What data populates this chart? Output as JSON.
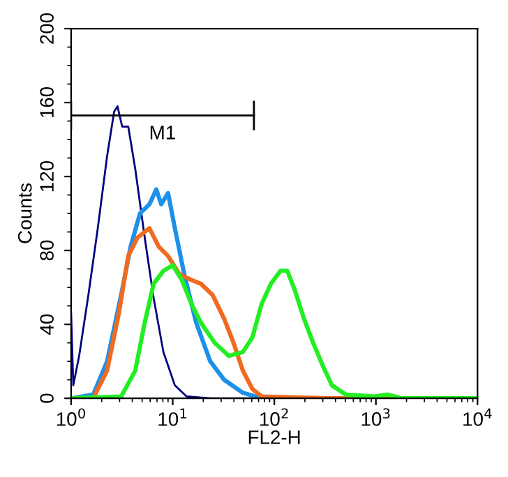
{
  "chart_data": {
    "type": "line",
    "xlabel": "FL2-H",
    "ylabel": "Counts",
    "log": "x",
    "grid": false,
    "legend": false,
    "xlim": [
      1,
      10000
    ],
    "ylim": [
      0,
      200
    ],
    "xticks": [
      {
        "value": 1,
        "label": "10$^{0}$"
      },
      {
        "value": 10,
        "label": "10$^{1}$"
      },
      {
        "value": 100,
        "label": "10$^{2}$"
      },
      {
        "value": 1000,
        "label": "10$^{3}$"
      },
      {
        "value": 10000,
        "label": "10$^{4}$"
      }
    ],
    "yticks": [
      0,
      40,
      80,
      120,
      160,
      200
    ],
    "annotations": [
      "M1"
    ],
    "series": [
      {
        "color": "#000080",
        "x": [
          1,
          1.05,
          1.2,
          1.48,
          1.83,
          2.26,
          2.65,
          2.86,
          3.18,
          3.65,
          4.28,
          5.3,
          6.5,
          8.1,
          10.5,
          13.7,
          23.4,
          10000
        ],
        "values": [
          46,
          7,
          23,
          56,
          92,
          131,
          155,
          158,
          147,
          147,
          124,
          87,
          54,
          25,
          7,
          1,
          0,
          0
        ]
      },
      {
        "color": "#1e90e8",
        "x": [
          1,
          1.65,
          2.26,
          3.11,
          3.85,
          4.76,
          5.9,
          6.9,
          7.7,
          9.0,
          10.5,
          13.0,
          17.0,
          23.4,
          32.1,
          49,
          75,
          10000
        ],
        "values": [
          0,
          2,
          20,
          56,
          82,
          100,
          105,
          113,
          105,
          111,
          92,
          67,
          41,
          20,
          10,
          3,
          0,
          0
        ]
      },
      {
        "color": "#f06a20",
        "x": [
          1,
          1.65,
          2.26,
          2.95,
          3.65,
          4.5,
          5.9,
          7.3,
          9.0,
          11.7,
          15.3,
          18.9,
          24.6,
          32.1,
          39.7,
          49,
          60.9,
          75,
          330,
          10000
        ],
        "values": [
          0,
          0,
          15,
          46,
          77,
          87,
          92,
          82,
          77,
          67,
          64,
          62,
          56,
          43,
          30,
          15,
          5,
          1,
          0,
          0
        ]
      },
      {
        "color": "#22ee22",
        "x": [
          1,
          3.11,
          4.28,
          5.3,
          6.5,
          8.1,
          10.0,
          12.3,
          15.3,
          18.9,
          25.9,
          35.6,
          49,
          60.9,
          75,
          92.7,
          115,
          134,
          158,
          196,
          241,
          298,
          369,
          507,
          960,
          1312,
          1803,
          10000
        ],
        "values": [
          0,
          1,
          15,
          41,
          62,
          69,
          72,
          64,
          51,
          41,
          30,
          23,
          25,
          33,
          51,
          62,
          69,
          69,
          59,
          43,
          30,
          18,
          7,
          2,
          1,
          2,
          0,
          0
        ]
      },
      {
        "color": "#000000",
        "x": [
          1,
          63
        ],
        "values": [
          153,
          153
        ],
        "errors": [
          8,
          8
        ]
      }
    ]
  }
}
